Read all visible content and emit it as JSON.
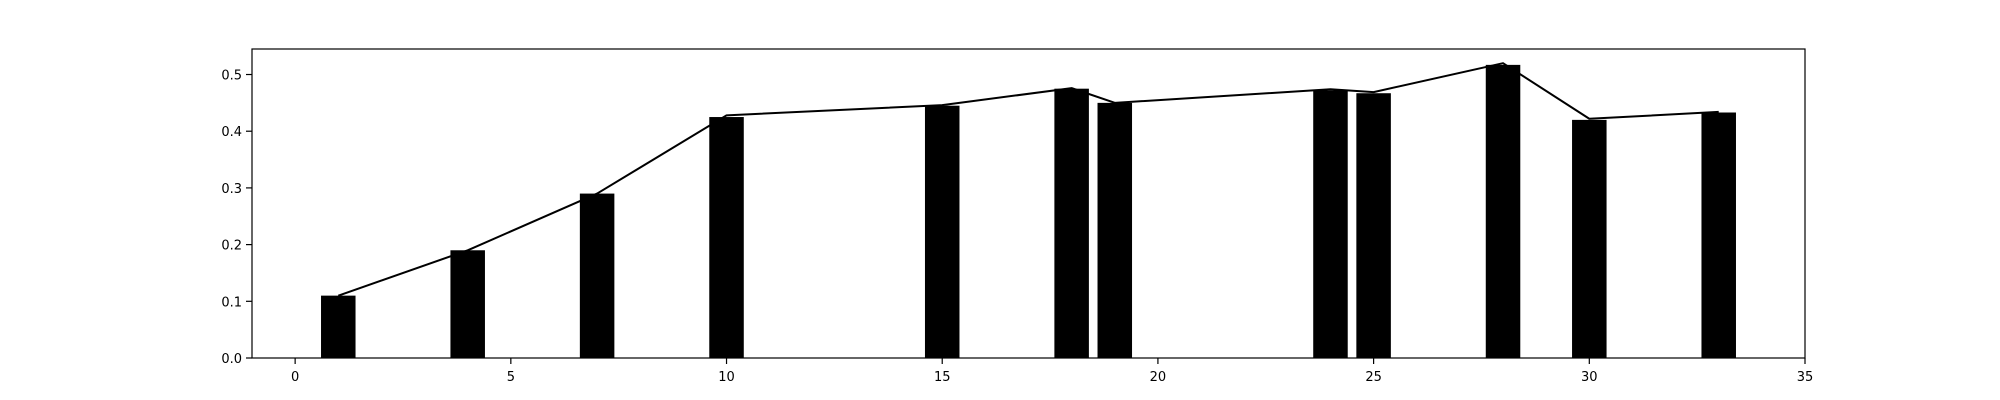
{
  "chart_data": {
    "type": "bar",
    "title": "",
    "xlabel": "",
    "ylabel": "",
    "xlim": [
      -1,
      35
    ],
    "ylim": [
      0,
      0.545
    ],
    "xticks": [
      0,
      5,
      10,
      15,
      20,
      25,
      30,
      35
    ],
    "yticks": [
      0.0,
      0.1,
      0.2,
      0.3,
      0.4,
      0.5
    ],
    "xtick_labels": [
      "0",
      "5",
      "10",
      "15",
      "20",
      "25",
      "30",
      "35"
    ],
    "ytick_labels": [
      "0.0",
      "0.1",
      "0.2",
      "0.3",
      "0.4",
      "0.5"
    ],
    "bar_width": 0.8,
    "grid": false,
    "colors": {
      "bar": "#000000",
      "line": "#000000",
      "axes": "#000000",
      "background": "#ffffff"
    },
    "series": [
      {
        "type": "bar",
        "x": [
          1,
          4,
          7,
          10,
          15,
          18,
          19,
          24,
          25,
          28,
          30,
          33
        ],
        "values": [
          0.11,
          0.19,
          0.29,
          0.425,
          0.445,
          0.475,
          0.45,
          0.472,
          0.467,
          0.517,
          0.42,
          0.433
        ]
      },
      {
        "type": "line",
        "x": [
          1,
          4,
          7,
          10,
          15,
          18,
          19,
          24,
          25,
          28,
          30,
          33
        ],
        "values": [
          0.11,
          0.19,
          0.29,
          0.428,
          0.446,
          0.476,
          0.45,
          0.474,
          0.469,
          0.52,
          0.422,
          0.434
        ]
      }
    ]
  }
}
